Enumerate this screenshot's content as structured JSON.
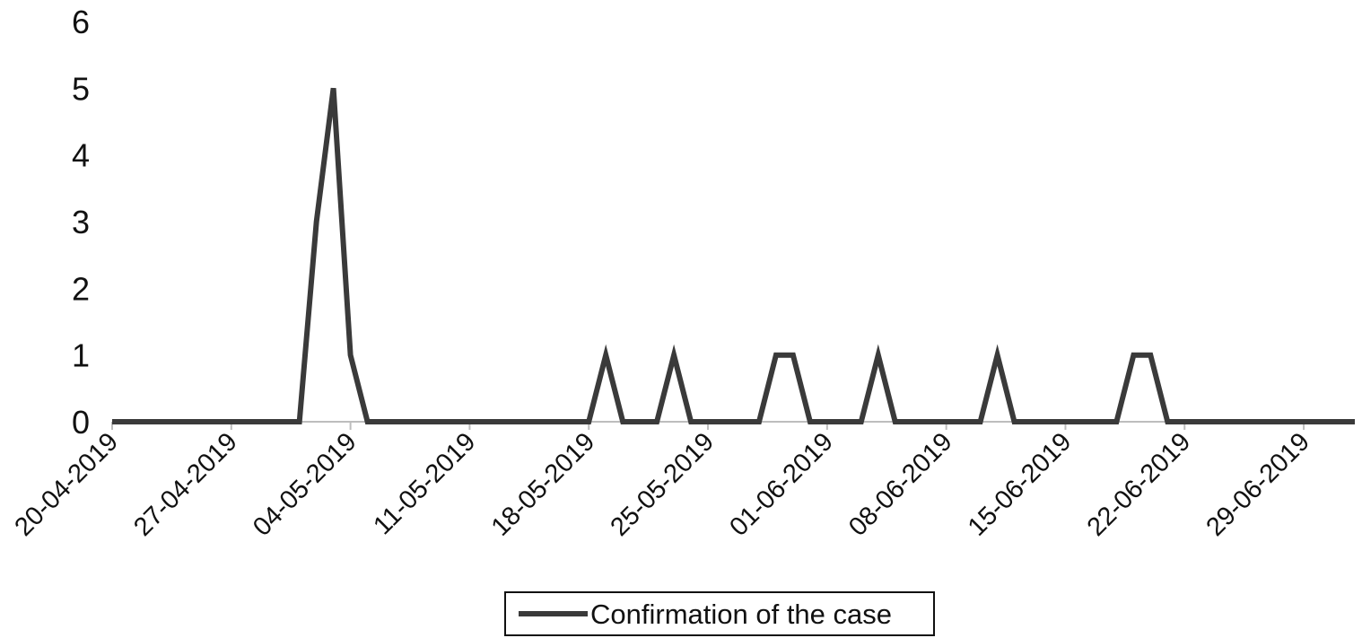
{
  "chart_data": {
    "type": "line",
    "title": "",
    "xlabel": "",
    "ylabel": "",
    "ylim": [
      0,
      6
    ],
    "yticks": [
      "0",
      "1",
      "2",
      "3",
      "4",
      "5",
      "6"
    ],
    "xlim": [
      "2019-04-20",
      "2019-07-02"
    ],
    "xticks": [
      "20-04-2019",
      "27-04-2019",
      "04-05-2019",
      "11-05-2019",
      "18-05-2019",
      "25-05-2019",
      "01-06-2019",
      "08-06-2019",
      "15-06-2019",
      "22-06-2019",
      "29-06-2019"
    ],
    "grid": false,
    "legend": {
      "position": "bottom",
      "entries": [
        "Confirmation of the case"
      ]
    },
    "series": [
      {
        "name": "Confirmation of the case",
        "color": "#3a3a3a",
        "x": [
          "2019-04-20",
          "2019-05-01",
          "2019-05-02",
          "2019-05-03",
          "2019-05-04",
          "2019-05-05",
          "2019-05-18",
          "2019-05-19",
          "2019-05-20",
          "2019-05-22",
          "2019-05-23",
          "2019-05-24",
          "2019-05-28",
          "2019-05-29",
          "2019-05-30",
          "2019-05-31",
          "2019-06-03",
          "2019-06-04",
          "2019-06-05",
          "2019-06-10",
          "2019-06-11",
          "2019-06-12",
          "2019-06-18",
          "2019-06-19",
          "2019-06-20",
          "2019-06-21",
          "2019-07-02"
        ],
        "values": [
          0,
          0,
          3,
          5,
          1,
          0,
          0,
          1,
          0,
          0,
          1,
          0,
          0,
          1,
          1,
          0,
          0,
          1,
          0,
          0,
          1,
          0,
          0,
          1,
          1,
          0,
          0
        ]
      }
    ]
  }
}
